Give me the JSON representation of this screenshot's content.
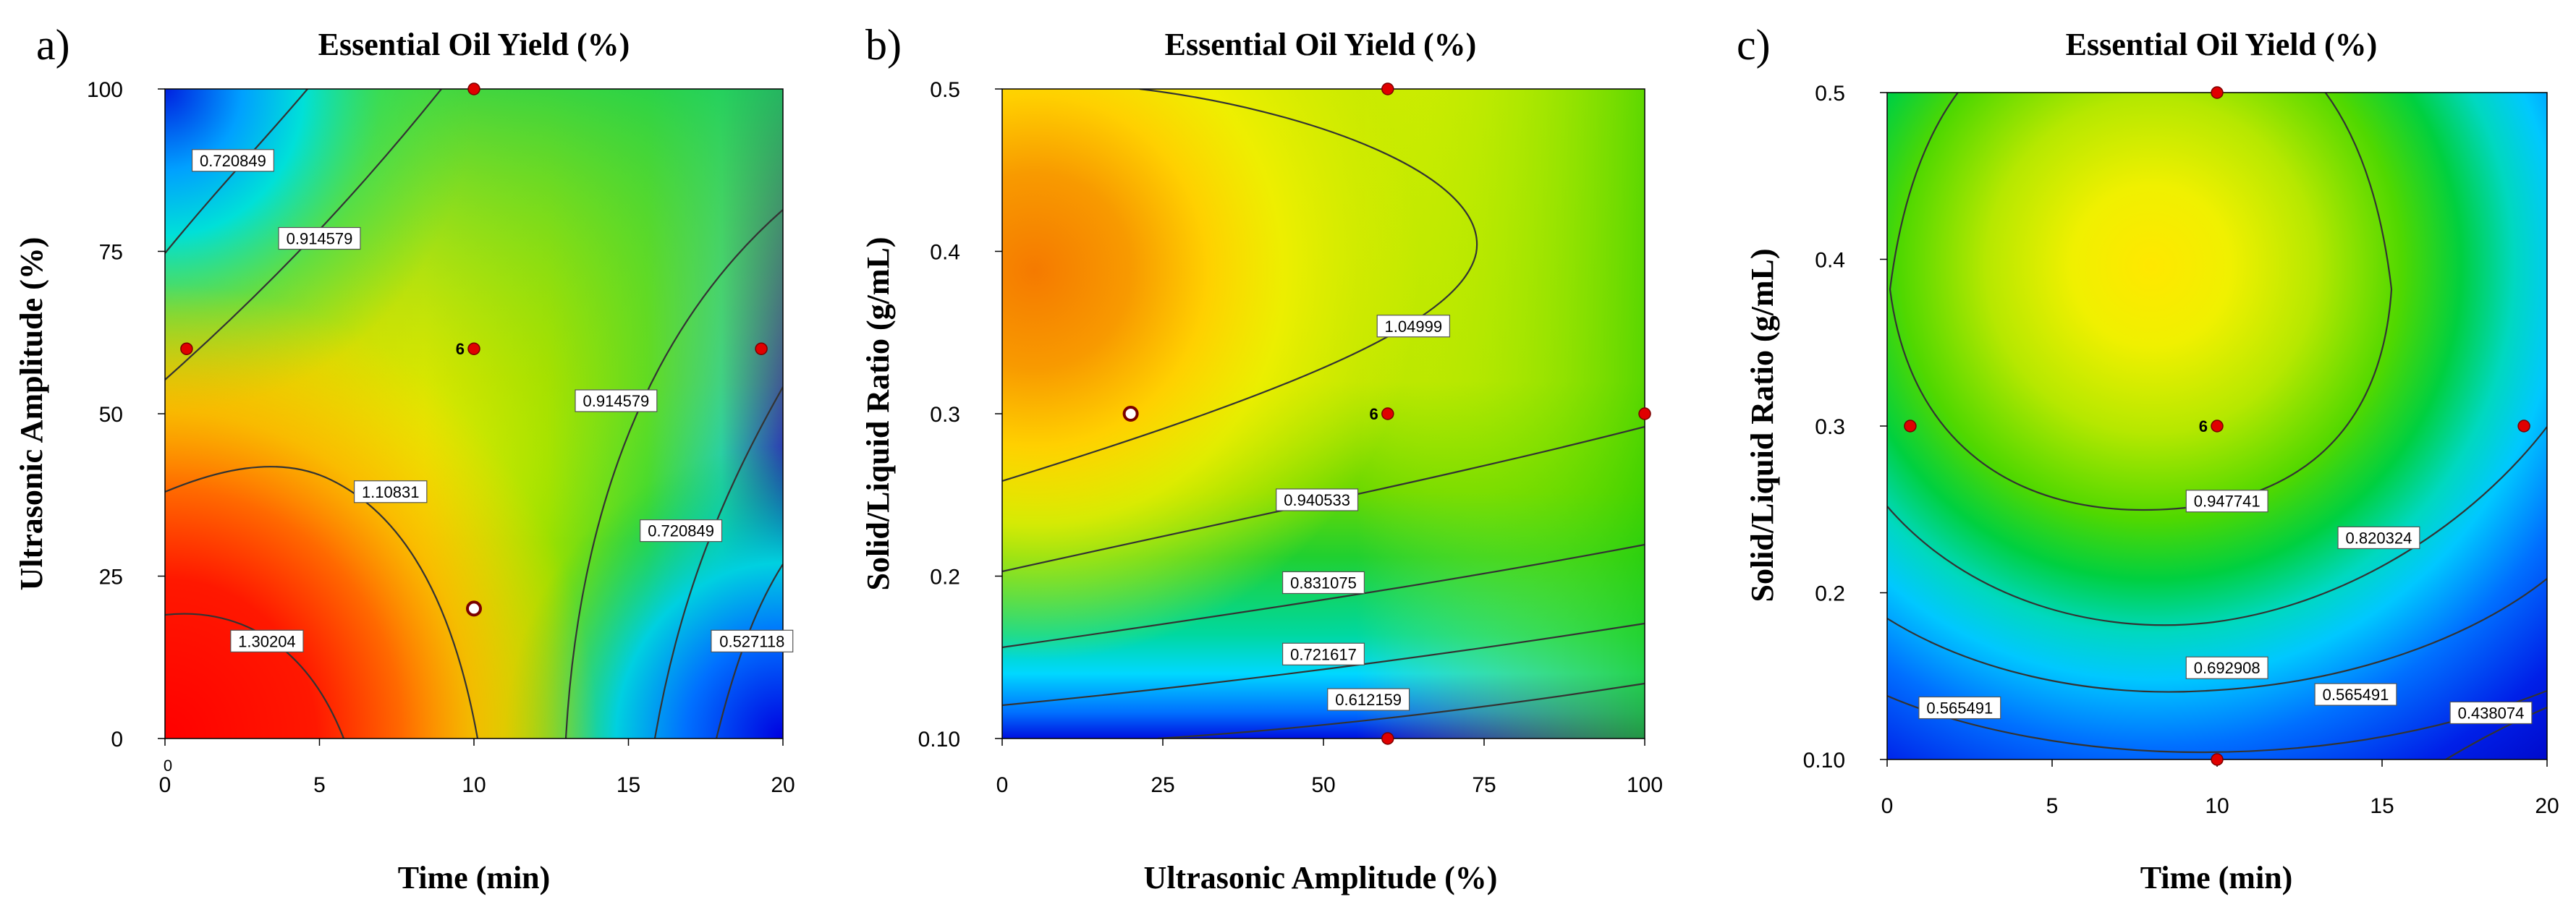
{
  "colors": {
    "point_fill": "#e00000",
    "point_stroke": "#7a0000",
    "contour": "#333333"
  },
  "chart_data": [
    {
      "type": "heatmap",
      "subtype": "contour",
      "panel": "a)",
      "title": "Essential  Oil Yield (%)",
      "xlabel": "Time (min)",
      "ylabel": "Ultrasonic  Amplitude (%)",
      "xlim": [
        0,
        20
      ],
      "ylim": [
        0,
        100
      ],
      "x_ticks": [
        "0",
        "5",
        "10",
        "15",
        "20"
      ],
      "x_tick_values": [
        0,
        5,
        10,
        15,
        20
      ],
      "y_ticks": [
        "0",
        "25",
        "50",
        "75",
        "100"
      ],
      "y_tick_values": [
        0,
        25,
        50,
        75,
        100
      ],
      "corner_mark": "0",
      "contour_labels": [
        {
          "text": "0.720849",
          "x": 2.2,
          "y": 89
        },
        {
          "text": "0.914579",
          "x": 5.0,
          "y": 77
        },
        {
          "text": "0.914579",
          "x": 14.6,
          "y": 52
        },
        {
          "text": "1.10831",
          "x": 7.3,
          "y": 38
        },
        {
          "text": "0.720849",
          "x": 16.7,
          "y": 32
        },
        {
          "text": "1.30204",
          "x": 3.3,
          "y": 15
        },
        {
          "text": "0.527118",
          "x": 19.0,
          "y": 15
        }
      ],
      "design_points": [
        {
          "x": 10,
          "y": 100,
          "hollow": false
        },
        {
          "x": 0.7,
          "y": 60,
          "hollow": false
        },
        {
          "x": 10,
          "y": 60,
          "hollow": false,
          "label": "6"
        },
        {
          "x": 19.3,
          "y": 60,
          "hollow": false
        },
        {
          "x": 10,
          "y": 20,
          "hollow": true
        }
      ]
    },
    {
      "type": "heatmap",
      "subtype": "contour",
      "panel": "b)",
      "title": "Essential  Oil Yield (%)",
      "xlabel": "Ultrasonic  Amplitude (%)",
      "ylabel": "Solid/Liquid Ratio (g/mL)",
      "xlim": [
        0,
        100
      ],
      "ylim": [
        0.1,
        0.5
      ],
      "x_ticks": [
        "0",
        "25",
        "50",
        "75",
        "100"
      ],
      "x_tick_values": [
        0,
        25,
        50,
        75,
        100
      ],
      "y_ticks": [
        "0.10",
        "0.2",
        "0.3",
        "0.4",
        "0.5"
      ],
      "y_tick_values": [
        0.1,
        0.2,
        0.3,
        0.4,
        0.5
      ],
      "contour_labels": [
        {
          "text": "1.04999",
          "x": 64,
          "y": 0.354
        },
        {
          "text": "0.940533",
          "x": 49,
          "y": 0.247
        },
        {
          "text": "0.831075",
          "x": 50,
          "y": 0.196
        },
        {
          "text": "0.721617",
          "x": 50,
          "y": 0.152
        },
        {
          "text": "0.612159",
          "x": 57,
          "y": 0.124
        }
      ],
      "design_points": [
        {
          "x": 60,
          "y": 0.5,
          "hollow": false
        },
        {
          "x": 20,
          "y": 0.3,
          "hollow": true
        },
        {
          "x": 60,
          "y": 0.3,
          "hollow": false,
          "label": "6"
        },
        {
          "x": 100,
          "y": 0.3,
          "hollow": false
        },
        {
          "x": 60,
          "y": 0.1,
          "hollow": false
        }
      ]
    },
    {
      "type": "heatmap",
      "subtype": "contour",
      "panel": "c)",
      "title": "Essential  Oil Yield (%)",
      "xlabel": "Time (min)",
      "ylabel": "Solid/Liquid Ratio (g/mL)",
      "xlim": [
        0,
        20
      ],
      "ylim": [
        0.1,
        0.5
      ],
      "x_ticks": [
        "0",
        "5",
        "10",
        "15",
        "20"
      ],
      "x_tick_values": [
        0,
        5,
        10,
        15,
        20
      ],
      "y_ticks": [
        "0.10",
        "0.2",
        "0.3",
        "0.4",
        "0.5"
      ],
      "y_tick_values": [
        0.1,
        0.2,
        0.3,
        0.4,
        0.5
      ],
      "contour_labels": [
        {
          "text": "0.947741",
          "x": 10.3,
          "y": 0.255
        },
        {
          "text": "0.820324",
          "x": 14.9,
          "y": 0.233
        },
        {
          "text": "0.692908",
          "x": 10.3,
          "y": 0.155
        },
        {
          "text": "0.565491",
          "x": 2.2,
          "y": 0.131
        },
        {
          "text": "0.565491",
          "x": 14.2,
          "y": 0.139
        },
        {
          "text": "0.438074",
          "x": 18.3,
          "y": 0.128
        }
      ],
      "design_points": [
        {
          "x": 10,
          "y": 0.5,
          "hollow": false
        },
        {
          "x": 0.7,
          "y": 0.3,
          "hollow": false
        },
        {
          "x": 10,
          "y": 0.3,
          "hollow": false,
          "label": "6"
        },
        {
          "x": 19.3,
          "y": 0.3,
          "hollow": false
        },
        {
          "x": 10,
          "y": 0.1,
          "hollow": false
        }
      ]
    }
  ]
}
